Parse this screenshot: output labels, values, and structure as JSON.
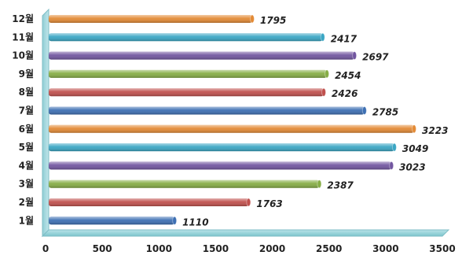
{
  "chart_data": {
    "type": "bar",
    "orientation": "horizontal",
    "categories": [
      "1월",
      "2월",
      "3월",
      "4월",
      "5월",
      "6월",
      "7월",
      "8월",
      "9월",
      "10월",
      "11월",
      "12월"
    ],
    "values": [
      1110,
      1763,
      2387,
      3023,
      3049,
      3223,
      2785,
      2426,
      2454,
      2697,
      2417,
      1795
    ],
    "value_labels": [
      "1110",
      "1763",
      "2387",
      "3023",
      "3049",
      "3223",
      "2785",
      "2426",
      "2454",
      "2697",
      "2417",
      "1795"
    ],
    "bar_colors": [
      "#3d6fb3",
      "#c0504d",
      "#86ad45",
      "#7256a0",
      "#3aa6c4",
      "#e38a35",
      "#3d6fb3",
      "#c0504d",
      "#86ad45",
      "#7256a0",
      "#3aa6c4",
      "#e38a35"
    ],
    "x_ticks": [
      "0",
      "500",
      "1000",
      "1500",
      "2000",
      "2500",
      "3000",
      "3500"
    ],
    "xlim": [
      0,
      3500
    ],
    "title": "",
    "xlabel": "",
    "ylabel": "",
    "grid": false,
    "legend": "none",
    "floor_color": "#9ad3da"
  }
}
